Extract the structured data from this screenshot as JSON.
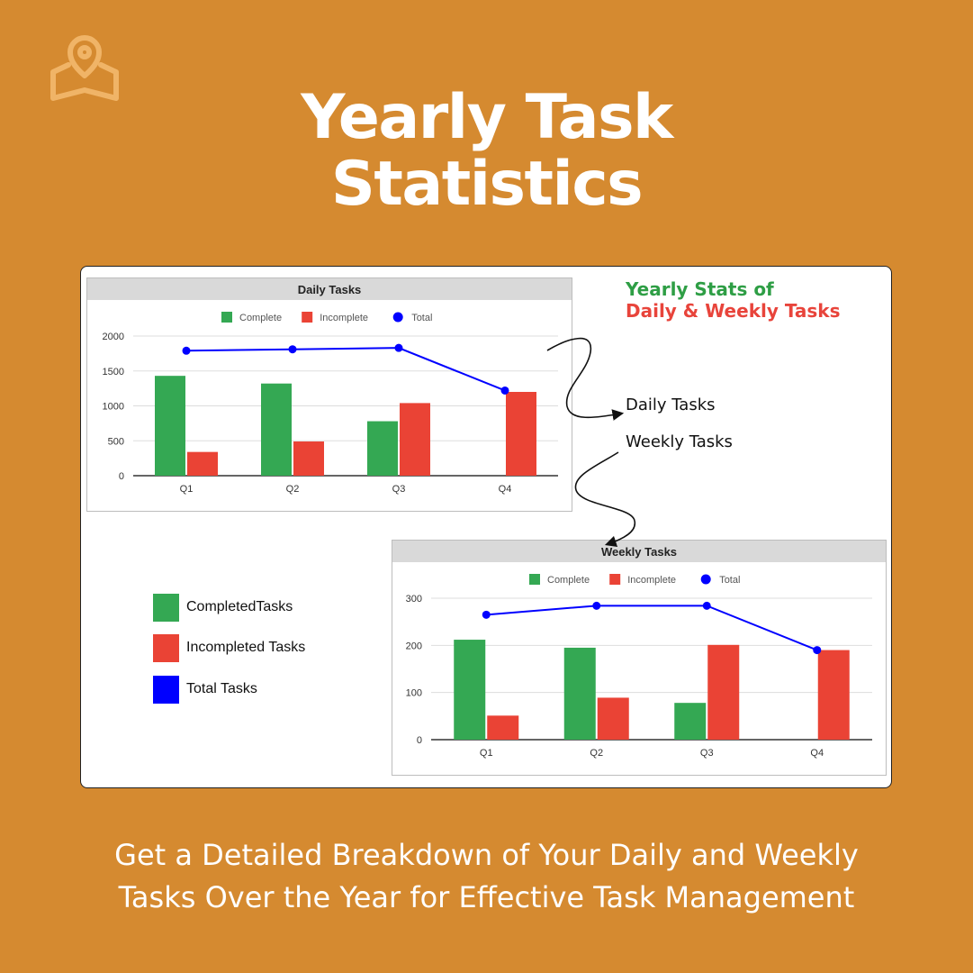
{
  "title": {
    "line1": "Yearly Task",
    "line2": "Statistics"
  },
  "footer": {
    "line1": "Get a Detailed Breakdown of Your Daily and Weekly",
    "line2": "Tasks Over the Year for Effective Task Management"
  },
  "icons": {
    "logo": "map-pin-icon"
  },
  "colors": {
    "background": "#D58A30",
    "complete": "#34A853",
    "incomplete": "#EA4335",
    "total": "#0000FF",
    "heading_green": "#2E9E45",
    "heading_red": "#E8443B"
  },
  "stats_heading": {
    "line1": "Yearly Stats of",
    "line2": "Daily & Weekly Tasks"
  },
  "callouts": {
    "daily": "Daily Tasks",
    "weekly": "Weekly Tasks"
  },
  "legend": [
    {
      "label": "CompletedTasks",
      "color": "#34A853"
    },
    {
      "label": "Incompleted Tasks",
      "color": "#EA4335"
    },
    {
      "label": "Total Tasks",
      "color": "#0000FF"
    }
  ],
  "chart_data": [
    {
      "type": "bar",
      "title": "Daily Tasks",
      "categories": [
        "Q1",
        "Q2",
        "Q3",
        "Q4"
      ],
      "series": [
        {
          "name": "Complete",
          "type": "bar",
          "color": "#34A853",
          "values": [
            1430,
            1320,
            780,
            0
          ]
        },
        {
          "name": "Incomplete",
          "type": "bar",
          "color": "#EA4335",
          "values": [
            340,
            490,
            1040,
            1200
          ]
        },
        {
          "name": "Total",
          "type": "line",
          "color": "#0000FF",
          "values": [
            1790,
            1810,
            1830,
            1220
          ]
        }
      ],
      "ylim": [
        0,
        2000
      ],
      "yticks": [
        0,
        500,
        1000,
        1500,
        2000
      ],
      "legend_position": "top",
      "grid": true
    },
    {
      "type": "bar",
      "title": "Weekly Tasks",
      "categories": [
        "Q1",
        "Q2",
        "Q3",
        "Q4"
      ],
      "series": [
        {
          "name": "Complete",
          "type": "bar",
          "color": "#34A853",
          "values": [
            212,
            195,
            78,
            0
          ]
        },
        {
          "name": "Incomplete",
          "type": "bar",
          "color": "#EA4335",
          "values": [
            51,
            89,
            201,
            190
          ]
        },
        {
          "name": "Total",
          "type": "line",
          "color": "#0000FF",
          "values": [
            265,
            284,
            284,
            190
          ]
        }
      ],
      "ylim": [
        0,
        300
      ],
      "yticks": [
        0,
        100,
        200,
        300
      ],
      "legend_position": "top",
      "grid": true
    }
  ]
}
